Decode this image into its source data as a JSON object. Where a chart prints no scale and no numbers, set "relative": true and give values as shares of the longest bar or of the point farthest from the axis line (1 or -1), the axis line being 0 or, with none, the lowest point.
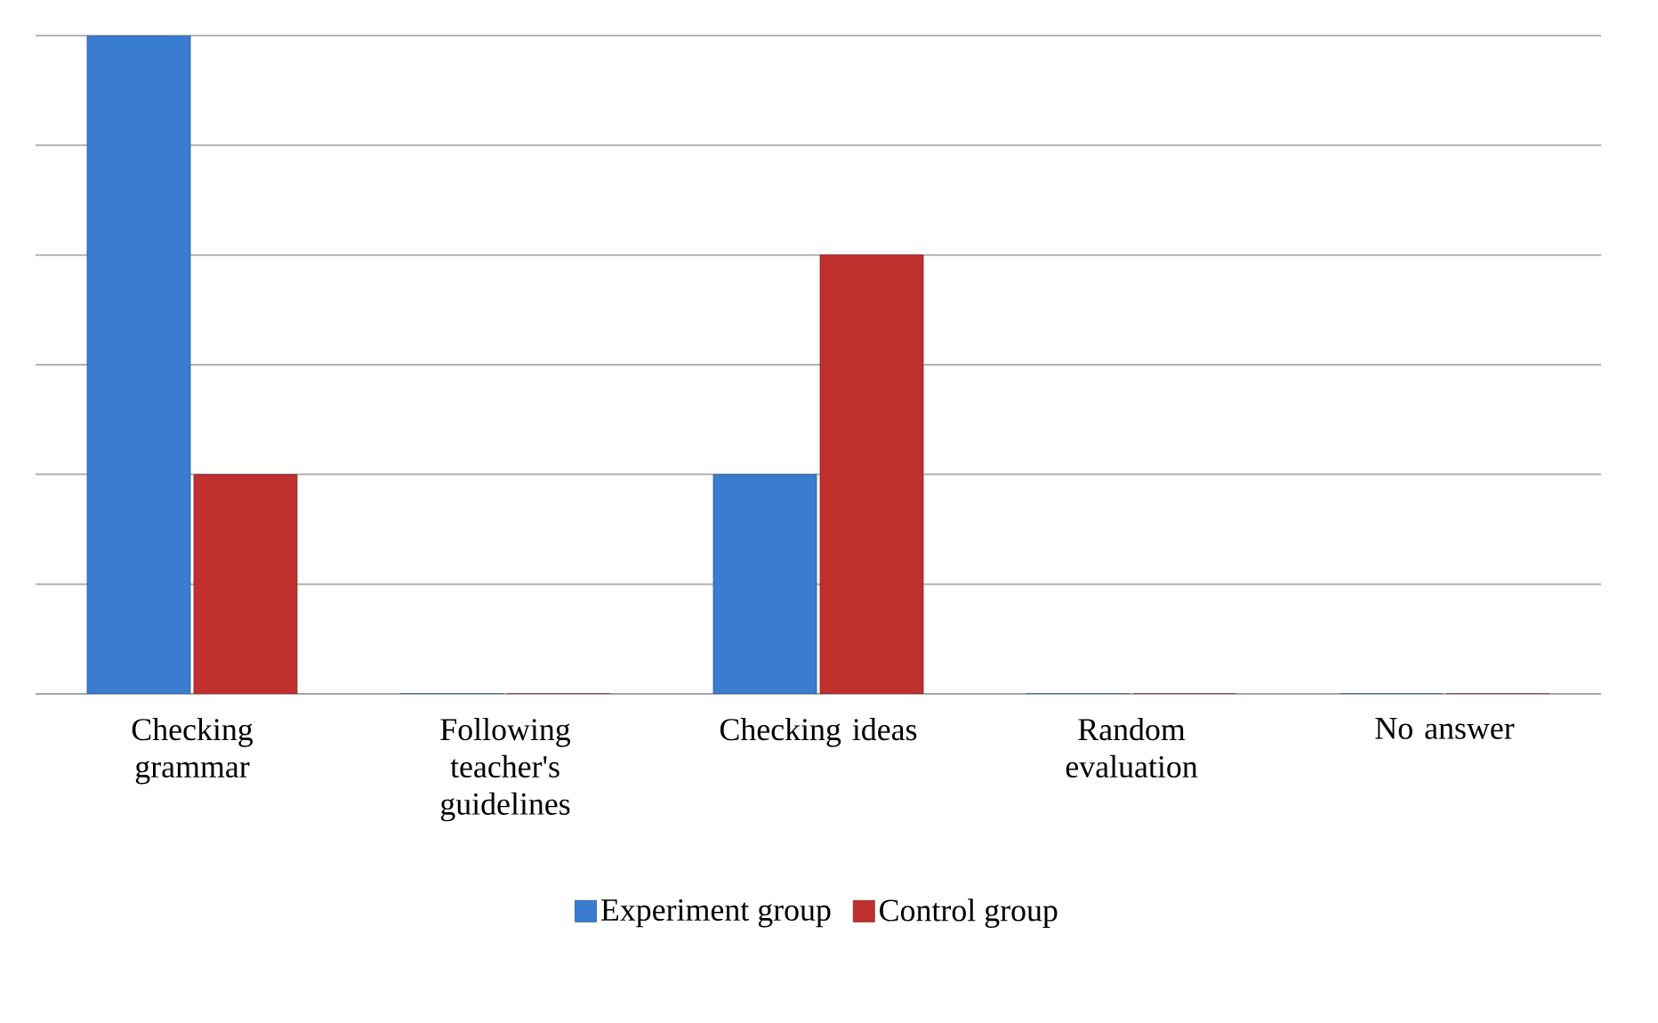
{
  "chart_data": {
    "type": "bar",
    "relative": true,
    "grid": "y",
    "legend": "bottom",
    "categories": [
      "Checking grammar",
      "Following teacher's guidelines",
      "Checking ideas",
      "Random evaluation",
      "No answer"
    ],
    "series": [
      {
        "name": "Experiment group",
        "color": "#3a7dd0",
        "values": [
          1,
          0,
          0.333,
          0,
          0
        ]
      },
      {
        "name": "Control group",
        "color": "#c0302e",
        "values": [
          0.333,
          0,
          0.667,
          0,
          0
        ]
      }
    ]
  }
}
